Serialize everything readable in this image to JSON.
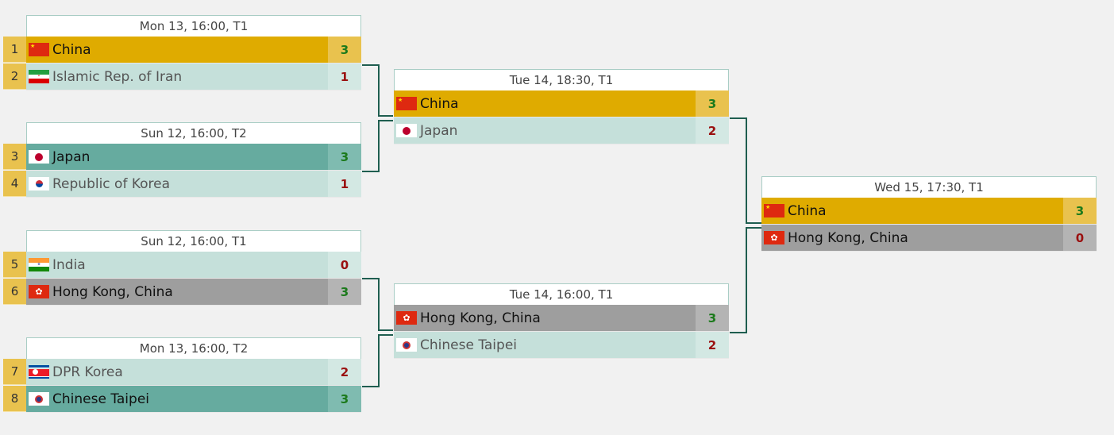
{
  "colors": {
    "winner_path": "#dfab00",
    "winner": "#66ab9f",
    "loser_final_path": "#9e9e9e",
    "loser": "#c5e0da",
    "connector": "#1f5e50",
    "win_score": "#1c7a1c",
    "lose_score": "#9a1010"
  },
  "matches": [
    {
      "header": "Mon 13, 16:00, T1",
      "teams": [
        {
          "seed": "1",
          "name": "China",
          "flag": "china-flag",
          "score": "3",
          "style": "gold",
          "result": "win"
        },
        {
          "seed": "2",
          "name": "Islamic Rep. of Iran",
          "flag": "iran-flag",
          "score": "1",
          "style": "light",
          "result": "lose"
        }
      ]
    },
    {
      "header": "Sun 12, 16:00, T2",
      "teams": [
        {
          "seed": "3",
          "name": "Japan",
          "flag": "japan-flag",
          "score": "3",
          "style": "teal",
          "result": "win"
        },
        {
          "seed": "4",
          "name": "Republic of Korea",
          "flag": "korea-flag",
          "score": "1",
          "style": "light",
          "result": "lose"
        }
      ]
    },
    {
      "header": "Sun 12, 16:00, T1",
      "teams": [
        {
          "seed": "5",
          "name": "India",
          "flag": "india-flag",
          "score": "0",
          "style": "light",
          "result": "lose"
        },
        {
          "seed": "6",
          "name": "Hong Kong, China",
          "flag": "hong-kong-flag",
          "score": "3",
          "style": "gray",
          "result": "win"
        }
      ]
    },
    {
      "header": "Mon 13, 16:00, T2",
      "teams": [
        {
          "seed": "7",
          "name": "DPR Korea",
          "flag": "dpr-korea-flag",
          "score": "2",
          "style": "light",
          "result": "lose"
        },
        {
          "seed": "8",
          "name": "Chinese Taipei",
          "flag": "chinese-taipei-flag",
          "score": "3",
          "style": "teal",
          "result": "win"
        }
      ]
    },
    {
      "header": "Tue 14, 18:30, T1",
      "teams": [
        {
          "name": "China",
          "flag": "china-flag",
          "score": "3",
          "style": "gold",
          "result": "win"
        },
        {
          "name": "Japan",
          "flag": "japan-flag",
          "score": "2",
          "style": "light",
          "result": "lose"
        }
      ]
    },
    {
      "header": "Tue 14, 16:00, T1",
      "teams": [
        {
          "name": "Hong Kong, China",
          "flag": "hong-kong-flag",
          "score": "3",
          "style": "gray",
          "result": "win"
        },
        {
          "name": "Chinese Taipei",
          "flag": "chinese-taipei-flag",
          "score": "2",
          "style": "light",
          "result": "lose"
        }
      ]
    },
    {
      "header": "Wed 15, 17:30, T1",
      "teams": [
        {
          "name": "China",
          "flag": "china-flag",
          "score": "3",
          "style": "gold",
          "result": "win"
        },
        {
          "name": "Hong Kong, China",
          "flag": "hong-kong-flag",
          "score": "0",
          "style": "gray",
          "result": "lose"
        }
      ]
    }
  ]
}
